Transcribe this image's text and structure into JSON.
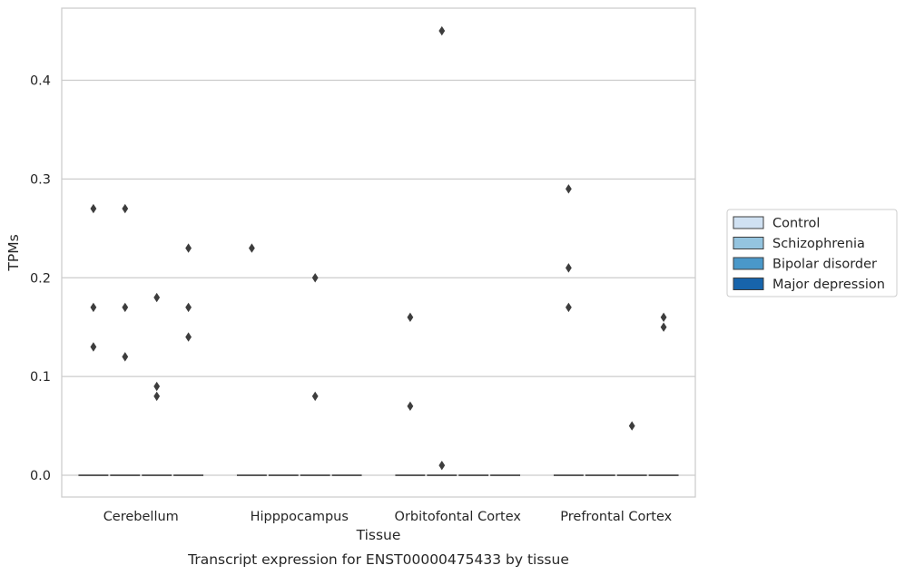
{
  "chart_data": {
    "type": "boxplot",
    "title": "Transcript expression for ENST00000475433 by tissue",
    "xlabel": "Tissue",
    "ylabel": "TPMs",
    "categories": [
      "Cerebellum",
      "Hipppocampus",
      "Orbitofontal Cortex",
      "Prefrontal Cortex"
    ],
    "ylim": [
      -0.022,
      0.473
    ],
    "yticks": [
      0.0,
      0.1,
      0.2,
      0.3,
      0.4
    ],
    "grid": "horizontal",
    "legend_position": "right",
    "series": [
      {
        "name": "Control",
        "color": "#d0e1f2",
        "outliers": [
          [
            0.27,
            0.17,
            0.13
          ],
          [
            0.23
          ],
          [
            0.16,
            0.07
          ],
          [
            0.29,
            0.21,
            0.17
          ]
        ]
      },
      {
        "name": "Schizophrenia",
        "color": "#94c4df",
        "outliers": [
          [
            0.27,
            0.17,
            0.12
          ],
          [],
          [
            0.45,
            0.01
          ],
          []
        ]
      },
      {
        "name": "Bipolar disorder",
        "color": "#4a98c9",
        "outliers": [
          [
            0.18,
            0.09,
            0.08
          ],
          [
            0.2,
            0.08
          ],
          [],
          [
            0.05
          ]
        ]
      },
      {
        "name": "Major depression",
        "color": "#1764ab",
        "outliers": [
          [
            0.23,
            0.17,
            0.14
          ],
          [],
          [],
          [
            0.16,
            0.15
          ]
        ]
      }
    ]
  }
}
